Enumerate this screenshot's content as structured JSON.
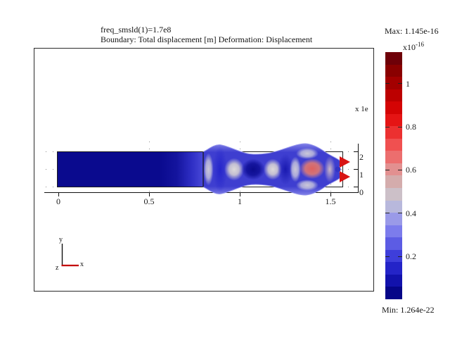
{
  "window": {
    "background": "#ffffff"
  },
  "title": {
    "line1": "freq_smsld(1)=1.7e8",
    "line2": "Boundary: Total displacement [m] Deformation: Displacement"
  },
  "colorbar": {
    "max_label": "Max: 1.145e-16",
    "min_label": "Min: 1.264e-22",
    "scale_base": "x10",
    "scale_exp": "-16",
    "ticks": [
      "1",
      "0.8",
      "0.6",
      "0.4",
      "0.2"
    ],
    "colors": [
      "#6E0008",
      "#8A0000",
      "#A30000",
      "#BC0000",
      "#D40404",
      "#E51414",
      "#EC3030",
      "#F05050",
      "#EC6E6E",
      "#E29090",
      "#D4ACAC",
      "#CCC0C8",
      "#B8B8DC",
      "#9A9AE8",
      "#7C7CEC",
      "#5C5CE4",
      "#3E3EDA",
      "#2424C8",
      "#1212AC",
      "#060688"
    ]
  },
  "axes": {
    "x_ticks": [
      "0",
      "0.5",
      "1",
      "1.5"
    ],
    "y_ticks_right": [
      "2",
      "1",
      "0"
    ],
    "y_scale_label": "x 1e"
  },
  "triad": {
    "x_label": "x",
    "y_label": "y",
    "z_label": "z",
    "x_axis_color": "#c40000"
  },
  "chart_data": {
    "type": "heatmap",
    "title": "freq_smsld(1)=1.7e8",
    "subtitle": "Boundary: Total displacement [m] Deformation: Displacement",
    "x_ticks": [
      0,
      0.5,
      1,
      1.5
    ],
    "y_ticks_right": [
      0,
      1,
      2
    ],
    "y_scale_note": "x 1e (truncated by frame)",
    "colorbar": {
      "scale": "x10^-16",
      "tick_values": [
        1,
        0.8,
        0.6,
        0.4,
        0.2
      ],
      "max": 1.145e-16,
      "min": 1.264e-22,
      "colormap": "blue-gray-red diverging, ~20 discrete bands, blue=low, red=high",
      "legend_position": "right"
    },
    "geometry": {
      "beam_x_range": [
        0,
        1.57
      ],
      "beam_y_range": [
        0,
        2
      ],
      "internal_boundary_x": 0.8,
      "description": "Horizontal rectangular beam; left segment (x<0.8) undeformed and uniform dark blue (~0 displacement); right segment shows standing-wave deformation bulges with alternating displacement lobes; two red arrowheads at right tip mark maximum displacement"
    },
    "field_lobes_x_vs_displacement_x1e-16": [
      {
        "x": "0 to 0.65",
        "value": 0.02,
        "appearance": "dark navy"
      },
      {
        "x": 0.83,
        "value": 0.6,
        "appearance": "pale band"
      },
      {
        "x": 0.89,
        "value": 0.25,
        "appearance": "bright blue band"
      },
      {
        "x": 0.97,
        "value": 0.6,
        "appearance": "white oval"
      },
      {
        "x": 1.08,
        "value": 0.05,
        "appearance": "dark navy oval"
      },
      {
        "x": 1.18,
        "value": 0.6,
        "appearance": "pale oval"
      },
      {
        "x": 1.26,
        "value": 0.2,
        "appearance": "blue band"
      },
      {
        "x": 1.4,
        "value": 0.85,
        "appearance": "salmon lobe"
      },
      {
        "x": 1.5,
        "value": 0.6,
        "appearance": "pale pink band"
      },
      {
        "x": 1.56,
        "value": 1.1,
        "appearance": "red arrowheads (max)"
      }
    ],
    "grid": "sparse dotted gridlines at major ticks"
  }
}
